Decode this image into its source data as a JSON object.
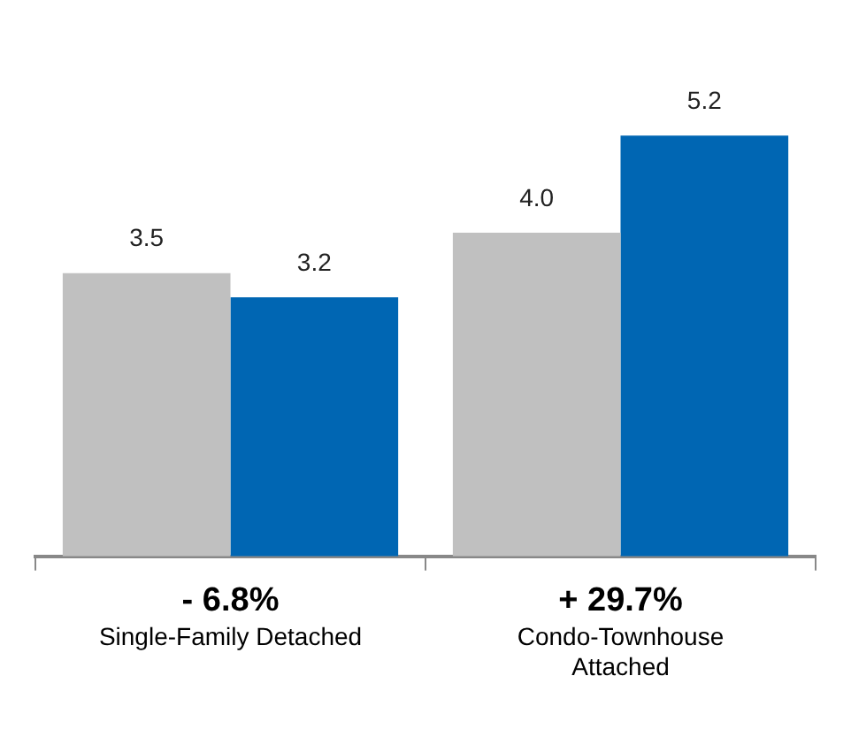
{
  "chart_data": {
    "type": "bar",
    "categories": [
      "Single-Family Detached",
      "Condo-Townhouse Attached"
    ],
    "series": [
      {
        "color": "#c0c0c0",
        "values": [
          3.5,
          4.0
        ],
        "value_labels": [
          "3.5",
          "4.0"
        ]
      },
      {
        "color": "#0066b3",
        "values": [
          3.2,
          5.2
        ],
        "value_labels": [
          "3.2",
          "5.2"
        ]
      }
    ],
    "annotations": [
      "- 6.8%",
      "+ 29.7%"
    ],
    "grid": false,
    "legend": false
  }
}
